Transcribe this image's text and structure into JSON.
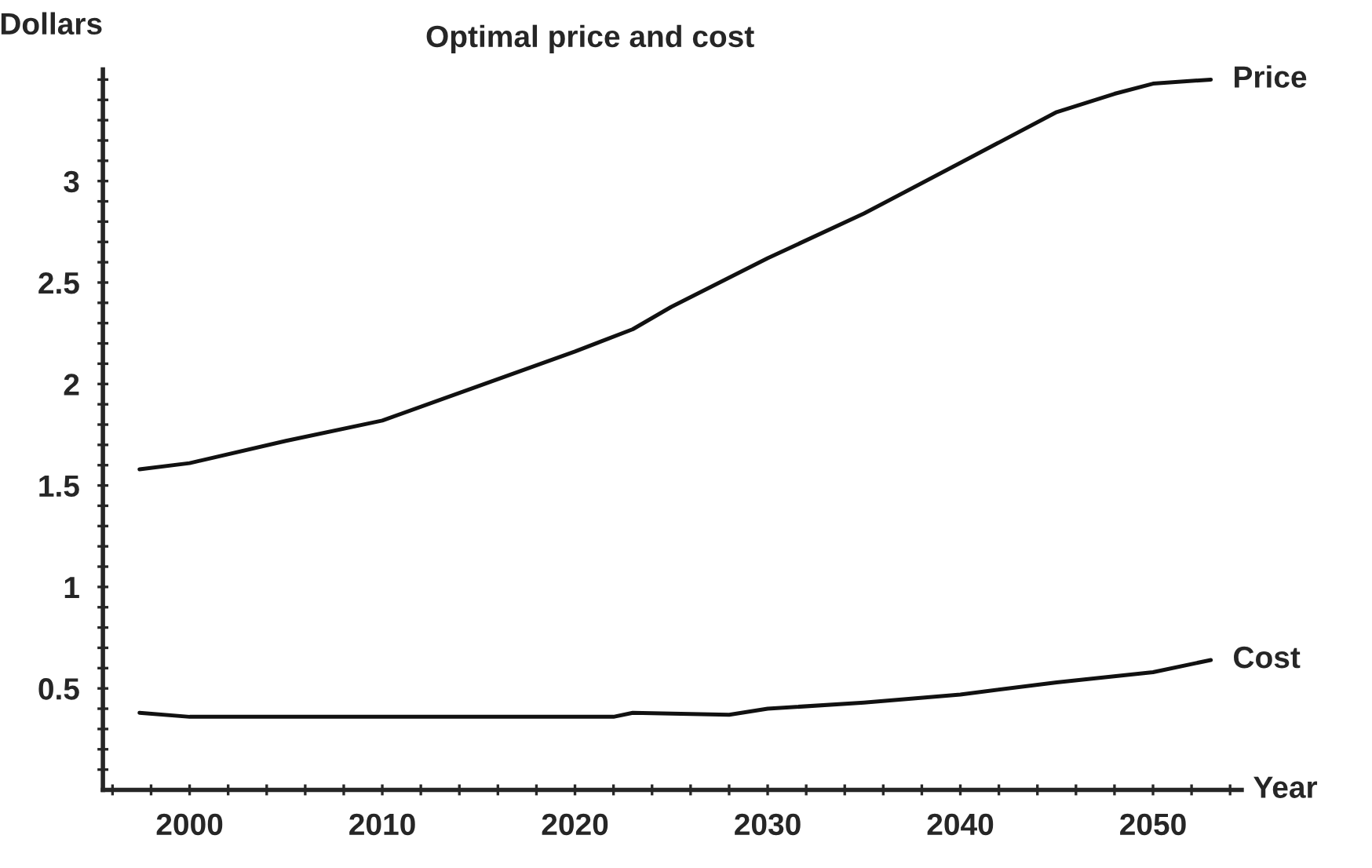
{
  "chart_data": {
    "type": "line",
    "title": "Optimal price and cost",
    "xlabel": "Year",
    "ylabel": "Dollars",
    "xlim": [
      1995.5,
      2054.6
    ],
    "ylim": [
      0,
      3.55
    ],
    "xticks": [
      {
        "value": 1996,
        "label": null
      },
      {
        "value": 1998,
        "label": null
      },
      2000,
      {
        "value": 2002,
        "label": null
      },
      {
        "value": 2004,
        "label": null
      },
      {
        "value": 2006,
        "label": null
      },
      {
        "value": 2008,
        "label": null
      },
      2010,
      {
        "value": 2012,
        "label": null
      },
      {
        "value": 2014,
        "label": null
      },
      {
        "value": 2016,
        "label": null
      },
      {
        "value": 2018,
        "label": null
      },
      2020,
      {
        "value": 2022,
        "label": null
      },
      {
        "value": 2024,
        "label": null
      },
      {
        "value": 2026,
        "label": null
      },
      {
        "value": 2028,
        "label": null
      },
      2030,
      {
        "value": 2032,
        "label": null
      },
      {
        "value": 2034,
        "label": null
      },
      {
        "value": 2036,
        "label": null
      },
      {
        "value": 2038,
        "label": null
      },
      2040,
      {
        "value": 2042,
        "label": null
      },
      {
        "value": 2044,
        "label": null
      },
      {
        "value": 2046,
        "label": null
      },
      {
        "value": 2048,
        "label": null
      },
      2050,
      {
        "value": 2052,
        "label": null
      },
      {
        "value": 2054,
        "label": null
      }
    ],
    "yticks": [
      {
        "value": 0.1,
        "label": null
      },
      {
        "value": 0.2,
        "label": null
      },
      {
        "value": 0.3,
        "label": null
      },
      {
        "value": 0.4,
        "label": null
      },
      0.5,
      {
        "value": 0.6,
        "label": null
      },
      {
        "value": 0.7,
        "label": null
      },
      {
        "value": 0.8,
        "label": null
      },
      {
        "value": 0.9,
        "label": null
      },
      1,
      {
        "value": 1.1,
        "label": null
      },
      {
        "value": 1.2,
        "label": null
      },
      {
        "value": 1.3,
        "label": null
      },
      {
        "value": 1.4,
        "label": null
      },
      1.5,
      {
        "value": 1.6,
        "label": null
      },
      {
        "value": 1.7,
        "label": null
      },
      {
        "value": 1.8,
        "label": null
      },
      {
        "value": 1.9,
        "label": null
      },
      2,
      {
        "value": 2.1,
        "label": null
      },
      {
        "value": 2.2,
        "label": null
      },
      {
        "value": 2.3,
        "label": null
      },
      {
        "value": 2.4,
        "label": null
      },
      2.5,
      {
        "value": 2.6,
        "label": null
      },
      {
        "value": 2.7,
        "label": null
      },
      {
        "value": 2.8,
        "label": null
      },
      {
        "value": 2.9,
        "label": null
      },
      3,
      {
        "value": 3.1,
        "label": null
      },
      {
        "value": 3.2,
        "label": null
      },
      {
        "value": 3.3,
        "label": null
      },
      {
        "value": 3.4,
        "label": null
      },
      {
        "value": 3.5,
        "label": null
      }
    ],
    "grid": false,
    "legend": false,
    "marker": "none",
    "line_style": "solid",
    "series": [
      {
        "name": "Price",
        "color": "#111111",
        "x": [
          1997.4,
          2000,
          2005,
          2010,
          2015,
          2020,
          2023,
          2025,
          2030,
          2035,
          2040,
          2045,
          2048,
          2050,
          2053
        ],
        "values": [
          1.58,
          1.61,
          1.72,
          1.82,
          1.99,
          2.16,
          2.27,
          2.38,
          2.62,
          2.84,
          3.09,
          3.34,
          3.43,
          3.48,
          3.5
        ]
      },
      {
        "name": "Cost",
        "color": "#111111",
        "x": [
          1997.4,
          2000,
          2010,
          2022,
          2023,
          2028,
          2030,
          2035,
          2040,
          2045,
          2050,
          2053
        ],
        "values": [
          0.38,
          0.36,
          0.36,
          0.36,
          0.38,
          0.37,
          0.4,
          0.43,
          0.47,
          0.53,
          0.58,
          0.64
        ]
      }
    ]
  }
}
